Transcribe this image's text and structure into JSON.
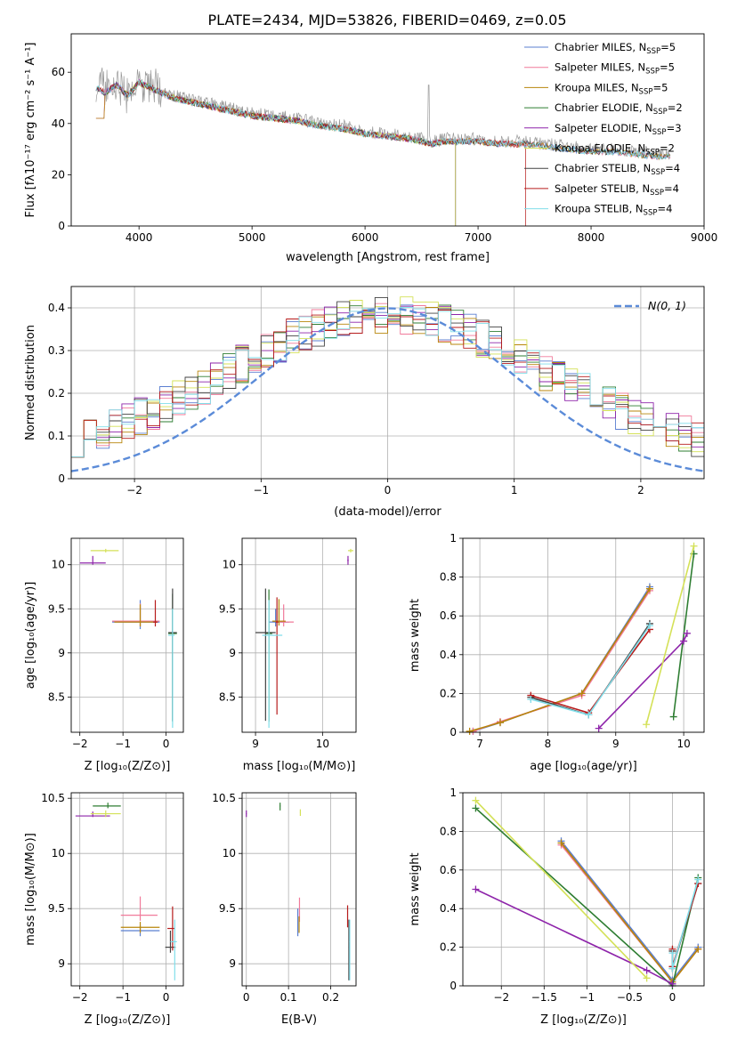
{
  "figure": {
    "title": "PLATE=2434, MJD=53826, FIBERID=0469, z=0.05",
    "series": [
      {
        "key": "chabrier_miles",
        "name": "Chabrier MILES",
        "nssp": "5",
        "color": "#5b7fd1"
      },
      {
        "key": "salpeter_miles",
        "name": "Salpeter MILES",
        "nssp": "5",
        "color": "#f07a9a"
      },
      {
        "key": "kroupa_miles",
        "name": "Kroupa MILES",
        "nssp": "5",
        "color": "#b8860b"
      },
      {
        "key": "chabrier_elodie",
        "name": "Chabrier ELODIE",
        "nssp": "2",
        "color": "#2e7d32"
      },
      {
        "key": "salpeter_elodie",
        "name": "Salpeter ELODIE",
        "nssp": "3",
        "color": "#8e24aa"
      },
      {
        "key": "kroupa_elodie",
        "name": "Kroupa ELODIE",
        "nssp": "2",
        "color": "#d4e157"
      },
      {
        "key": "chabrier_stelib",
        "name": "Chabrier STELIB",
        "nssp": "4",
        "color": "#424242"
      },
      {
        "key": "salpeter_stelib",
        "name": "Salpeter STELIB",
        "nssp": "4",
        "color": "#b71c1c"
      },
      {
        "key": "kroupa_stelib",
        "name": "Kroupa STELIB",
        "nssp": "4",
        "color": "#80deea"
      }
    ],
    "spectrum_data_color": "#999999",
    "model_overlay_color": "#e8742a",
    "legend_nssp_label": "N",
    "legend_nssp_sub": "SSP",
    "gauss_label": "N(0,1)",
    "gauss_color": "#5b8bd8"
  },
  "chart_data": [
    {
      "id": "spectrum",
      "type": "line",
      "title": "PLATE=2434, MJD=53826, FIBERID=0469, z=0.05",
      "xlabel": "wavelength [Angstrom, rest frame]",
      "ylabel": "Flux [fλ10^-17 erg cm^-2 s^-1 A^-1]",
      "xlim": [
        3400,
        9000
      ],
      "ylim": [
        0,
        75
      ],
      "xticks": [
        4000,
        5000,
        6000,
        7000,
        8000,
        9000
      ],
      "yticks": [
        0,
        20,
        40,
        60
      ],
      "grid": false,
      "legend": "top-right",
      "continuum": {
        "x": [
          3620,
          3700,
          3800,
          3900,
          4000,
          4100,
          4200,
          4300,
          4400,
          4500,
          4600,
          4700,
          4800,
          4900,
          5000,
          5200,
          5400,
          5600,
          5800,
          6000,
          6200,
          6400,
          6600,
          6700,
          6800,
          7000,
          7200,
          7400,
          7600,
          7800,
          8000,
          8200,
          8400,
          8600,
          8700
        ],
        "y": [
          55,
          53,
          56,
          52,
          57,
          55,
          53,
          51,
          50,
          49,
          48,
          47,
          46,
          45,
          44,
          43,
          42,
          40,
          39,
          37,
          36,
          35,
          33,
          34,
          34,
          34,
          33,
          33,
          32,
          31,
          30,
          30,
          29,
          28,
          28
        ]
      },
      "model_cutoffs": {
        "kroupa_elodie_blue_start": 3900,
        "elodie_red_end": 6800,
        "salpeter_stelib_red_end": 7420
      }
    },
    {
      "id": "residuals",
      "type": "line",
      "xlabel": "(data-model)/error",
      "ylabel": "Normed distribution",
      "xlim": [
        -2.5,
        2.5
      ],
      "ylim": [
        0,
        0.45
      ],
      "xticks": [
        -2,
        -1,
        0,
        1,
        2
      ],
      "yticks": [
        0.0,
        0.1,
        0.2,
        0.3,
        0.4
      ],
      "grid": true,
      "legend": "top-right",
      "bins": 50,
      "gaussian": {
        "mean": 0,
        "sigma": 1
      }
    },
    {
      "id": "age_vs_Z",
      "type": "scatter",
      "xlabel": "Z [log10(Z/Z☉)]",
      "ylabel": "age [log10(age/yr)]",
      "xlim": [
        -2.2,
        0.4
      ],
      "ylim": [
        8.1,
        10.3
      ],
      "xticks": [
        -2,
        -1,
        0
      ],
      "yticks": [
        8.5,
        9.0,
        9.5,
        10.0
      ],
      "grid": true
    },
    {
      "id": "age_vs_mass",
      "type": "scatter",
      "xlabel": "mass [log10(M/M☉)]",
      "ylabel": "",
      "xlim": [
        8.8,
        10.5
      ],
      "ylim": [
        8.1,
        10.3
      ],
      "xticks": [
        9,
        10
      ],
      "yticks": [
        8.5,
        9.0,
        9.5,
        10.0
      ],
      "grid": true
    },
    {
      "id": "weight_vs_age",
      "type": "line",
      "xlabel": "age [log10(age/yr)]",
      "ylabel": "mass weight",
      "xlim": [
        6.75,
        10.3
      ],
      "ylim": [
        0,
        1.0
      ],
      "xticks": [
        7,
        8,
        9,
        10
      ],
      "yticks": [
        0.0,
        0.2,
        0.4,
        0.6,
        0.8,
        1.0
      ],
      "grid": true,
      "series": [
        {
          "name": "Chabrier MILES",
          "x": [
            6.9,
            7.3,
            8.5,
            9.5
          ],
          "y": [
            0.005,
            0.05,
            0.2,
            0.75
          ]
        },
        {
          "name": "Salpeter MILES",
          "x": [
            6.9,
            7.3,
            8.5,
            9.5
          ],
          "y": [
            0.005,
            0.055,
            0.19,
            0.73
          ]
        },
        {
          "name": "Kroupa MILES",
          "x": [
            6.85,
            7.3,
            8.5,
            9.5
          ],
          "y": [
            0.005,
            0.05,
            0.2,
            0.74
          ]
        },
        {
          "name": "Chabrier ELODIE",
          "x": [
            9.85,
            10.15
          ],
          "y": [
            0.08,
            0.92
          ]
        },
        {
          "name": "Salpeter ELODIE",
          "x": [
            8.75,
            10.0,
            10.05
          ],
          "y": [
            0.02,
            0.47,
            0.51
          ]
        },
        {
          "name": "Kroupa ELODIE",
          "x": [
            9.45,
            10.15
          ],
          "y": [
            0.04,
            0.96
          ]
        },
        {
          "name": "Chabrier STELIB",
          "x": [
            7.75,
            8.6,
            9.5
          ],
          "y": [
            0.18,
            0.09,
            0.56
          ]
        },
        {
          "name": "Salpeter STELIB",
          "x": [
            7.75,
            8.6,
            9.5
          ],
          "y": [
            0.19,
            0.1,
            0.53
          ]
        },
        {
          "name": "Kroupa STELIB",
          "x": [
            7.75,
            8.6,
            9.5
          ],
          "y": [
            0.17,
            0.09,
            0.55
          ]
        }
      ]
    },
    {
      "id": "mass_vs_Z",
      "type": "scatter",
      "xlabel": "Z [log10(Z/Z☉)]",
      "ylabel": "mass [log10(M/M☉)]",
      "xlim": [
        -2.2,
        0.4
      ],
      "ylim": [
        8.8,
        10.55
      ],
      "xticks": [
        -2,
        -1,
        0
      ],
      "yticks": [
        9.0,
        9.5,
        10.0,
        10.5
      ],
      "grid": true
    },
    {
      "id": "mass_vs_EBV",
      "type": "scatter",
      "xlabel": "E(B-V)",
      "ylabel": "",
      "xlim": [
        -0.01,
        0.26
      ],
      "ylim": [
        8.8,
        10.55
      ],
      "xticks": [
        0.0,
        0.1,
        0.2
      ],
      "yticks": [
        9.0,
        9.5,
        10.0,
        10.5
      ],
      "grid": true
    },
    {
      "id": "weight_vs_Z",
      "type": "line",
      "xlabel": "Z [log10(Z/Z☉)]",
      "ylabel": "mass weight",
      "xlim": [
        -2.45,
        0.37
      ],
      "ylim": [
        0,
        1.0
      ],
      "xticks": [
        -2.0,
        -1.5,
        -1.0,
        -0.5,
        0.0
      ],
      "yticks": [
        0.0,
        0.2,
        0.4,
        0.6,
        0.8,
        1.0
      ],
      "grid": true,
      "series": [
        {
          "name": "Chabrier MILES",
          "x": [
            -1.3,
            0.0,
            0.3
          ],
          "y": [
            0.75,
            0.03,
            0.2
          ]
        },
        {
          "name": "Salpeter MILES",
          "x": [
            -1.3,
            0.0,
            0.3
          ],
          "y": [
            0.73,
            0.02,
            0.19
          ]
        },
        {
          "name": "Kroupa MILES",
          "x": [
            -1.3,
            0.0,
            0.3
          ],
          "y": [
            0.74,
            0.02,
            0.19
          ]
        },
        {
          "name": "Chabrier ELODIE",
          "x": [
            -2.3,
            0.0,
            0.3
          ],
          "y": [
            0.92,
            0.0,
            0.56
          ]
        },
        {
          "name": "Salpeter ELODIE",
          "x": [
            -2.3,
            -0.3,
            0.0
          ],
          "y": [
            0.5,
            0.08,
            0.01
          ]
        },
        {
          "name": "Kroupa ELODIE",
          "x": [
            -2.3,
            -0.3
          ],
          "y": [
            0.96,
            0.04
          ]
        },
        {
          "name": "Chabrier STELIB",
          "x": [
            0.0,
            0.0,
            0.3
          ],
          "y": [
            0.18,
            0.09,
            0.53
          ]
        },
        {
          "name": "Salpeter STELIB",
          "x": [
            0.0,
            0.0,
            0.3
          ],
          "y": [
            0.19,
            0.1,
            0.53
          ]
        },
        {
          "name": "Kroupa STELIB",
          "x": [
            0.0,
            0.0,
            0.3
          ],
          "y": [
            0.17,
            0.09,
            0.55
          ]
        }
      ]
    }
  ]
}
